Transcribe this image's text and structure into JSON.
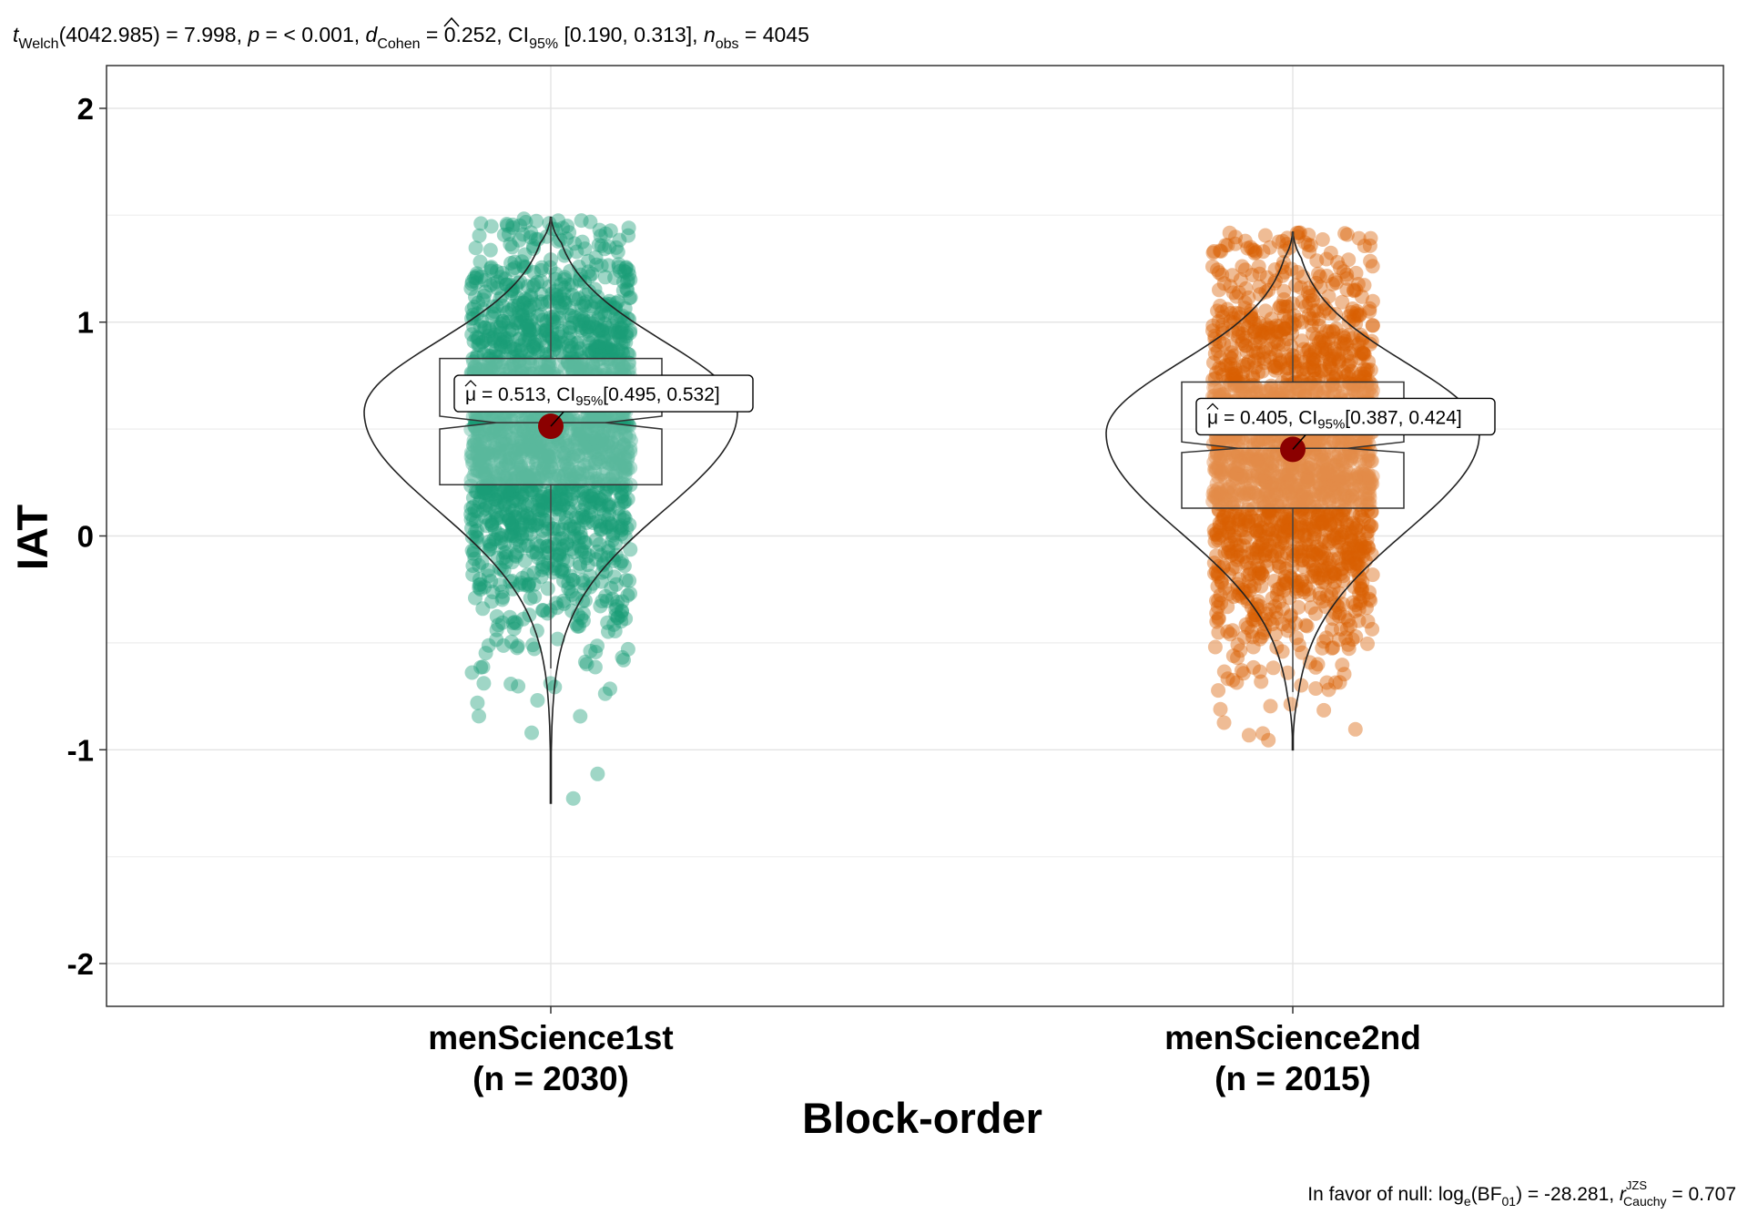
{
  "chart_data": {
    "type": "violin-box-scatter",
    "subtitle": {
      "t_name": "t",
      "t_sub": "Welch",
      "t_rest": "(4042.985) = 7.998, ",
      "p_name": "p",
      "p_rest": " = < 0.001, ",
      "d_name": "d",
      "d_sub": "Cohen",
      "d_rest": " = 0.252, CI",
      "ci_sub": "95%",
      "ci_rest": " [0.190, 0.313], ",
      "n_name": "n",
      "n_sub": "obs",
      "n_rest": " = 4045"
    },
    "caption": {
      "lead": "In favor of null: log",
      "log_sub": "e",
      "bf_open": "(BF",
      "bf_sub": "01",
      "bf_rest": ") = -28.281, ",
      "r_name": "r",
      "r_sup": "JZS",
      "r_sub": "Cauchy",
      "r_rest": " = 0.707"
    },
    "xlabel": "Block-order",
    "ylabel": "IAT",
    "ylim": [
      -2.2,
      2.2
    ],
    "yticks": [
      "-2",
      "-1",
      "0",
      "1",
      "2"
    ],
    "ytick_values": [
      -2,
      -1,
      0,
      1,
      2
    ],
    "grid": true,
    "groups": [
      {
        "name": "menScience1st",
        "n_label": "(n = 2030)",
        "n": 2030,
        "color": "#1B9E77",
        "mean": 0.513,
        "ci": [
          0.495,
          0.532
        ],
        "mean_label": {
          "mu": "μ",
          "a": " = 0.513, CI",
          "sub": "95%",
          "b": "[0.495, 0.532]"
        },
        "box": {
          "q1": 0.24,
          "median": 0.53,
          "q3": 0.83,
          "notch_low": 0.5,
          "notch_high": 0.56
        },
        "whiskers": [
          -0.62,
          1.49
        ],
        "range": [
          -1.25,
          1.49
        ],
        "violin_peak": 0.58
      },
      {
        "name": "menScience2nd",
        "n_label": "(n = 2015)",
        "n": 2015,
        "color": "#D95F02",
        "mean": 0.405,
        "ci": [
          0.387,
          0.424
        ],
        "mean_label": {
          "mu": "μ",
          "a": " = 0.405, CI",
          "sub": "95%",
          "b": "[0.387, 0.424]"
        },
        "box": {
          "q1": 0.13,
          "median": 0.41,
          "q3": 0.72,
          "notch_low": 0.39,
          "notch_high": 0.44
        },
        "whiskers": [
          -0.73,
          1.42
        ],
        "range": [
          -1.0,
          1.42
        ],
        "violin_peak": 0.48
      }
    ],
    "mean_point_color": "#8B0000"
  }
}
